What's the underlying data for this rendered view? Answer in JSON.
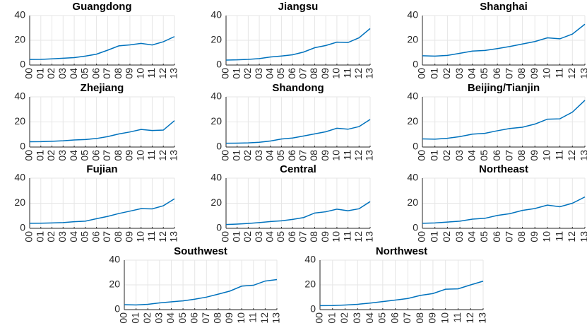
{
  "chart_data": [
    {
      "type": "line",
      "title": "Guangdong",
      "categories": [
        "00",
        "01",
        "02",
        "03",
        "04",
        "05",
        "06",
        "07",
        "08",
        "09",
        "10",
        "11",
        "12",
        "13"
      ],
      "values": [
        4.5,
        4.6,
        5,
        5.5,
        6,
        7.2,
        8.8,
        12,
        15.5,
        16.3,
        17.5,
        16.2,
        18.8,
        23
      ],
      "color": "#0072bd",
      "ylim": [
        0,
        40
      ],
      "yticks": [
        0,
        20,
        40
      ],
      "grid": true
    },
    {
      "type": "line",
      "title": "Jiangsu",
      "categories": [
        "00",
        "01",
        "02",
        "03",
        "04",
        "05",
        "06",
        "07",
        "08",
        "09",
        "10",
        "11",
        "12",
        "13"
      ],
      "values": [
        4,
        4.2,
        4.6,
        5.2,
        6.5,
        7.3,
        8.3,
        10.5,
        14,
        15.8,
        18.5,
        18.2,
        22,
        29.5
      ],
      "color": "#0072bd",
      "ylim": [
        0,
        40
      ],
      "yticks": [
        0,
        20,
        40
      ],
      "grid": true
    },
    {
      "type": "line",
      "title": "Shanghai",
      "categories": [
        "00",
        "01",
        "02",
        "03",
        "04",
        "05",
        "06",
        "07",
        "08",
        "09",
        "10",
        "11",
        "12",
        "13"
      ],
      "values": [
        7.5,
        7.2,
        7.8,
        9.5,
        11.3,
        11.8,
        13.3,
        15,
        17,
        19,
        22,
        21.2,
        25,
        33
      ],
      "color": "#0072bd",
      "ylim": [
        0,
        40
      ],
      "yticks": [
        0,
        20,
        40
      ],
      "grid": true
    },
    {
      "type": "line",
      "title": "Zhejiang",
      "categories": [
        "00",
        "01",
        "02",
        "03",
        "04",
        "05",
        "06",
        "07",
        "08",
        "09",
        "10",
        "11",
        "12",
        "13"
      ],
      "values": [
        4.2,
        4.3,
        4.6,
        5,
        5.6,
        6,
        6.8,
        8.3,
        10.4,
        12,
        14,
        13.2,
        13.5,
        21
      ],
      "color": "#0072bd",
      "ylim": [
        0,
        40
      ],
      "yticks": [
        0,
        20,
        40
      ],
      "grid": true
    },
    {
      "type": "line",
      "title": "Shandong",
      "categories": [
        "00",
        "01",
        "02",
        "03",
        "04",
        "05",
        "06",
        "07",
        "08",
        "09",
        "10",
        "11",
        "12",
        "13"
      ],
      "values": [
        3,
        3.1,
        3.3,
        3.8,
        4.8,
        6.4,
        7.2,
        8.8,
        10.5,
        12.2,
        15,
        14.2,
        16.3,
        22
      ],
      "color": "#0072bd",
      "ylim": [
        0,
        40
      ],
      "yticks": [
        0,
        20,
        40
      ],
      "grid": true
    },
    {
      "type": "line",
      "title": "Beijing/Tianjin",
      "categories": [
        "00",
        "01",
        "02",
        "03",
        "04",
        "05",
        "06",
        "07",
        "08",
        "09",
        "10",
        "11",
        "12",
        "13"
      ],
      "values": [
        6.5,
        6.3,
        7,
        8.3,
        10.3,
        10.9,
        13,
        14.8,
        15.8,
        18.3,
        22.2,
        22.5,
        27.8,
        37.2
      ],
      "color": "#0072bd",
      "ylim": [
        0,
        40
      ],
      "yticks": [
        0,
        20,
        40
      ],
      "grid": true
    },
    {
      "type": "line",
      "title": "Fujian",
      "categories": [
        "00",
        "01",
        "02",
        "03",
        "04",
        "05",
        "06",
        "07",
        "08",
        "09",
        "10",
        "11",
        "12",
        "13"
      ],
      "values": [
        4,
        4.1,
        4.3,
        4.6,
        5.3,
        5.7,
        7.7,
        9.5,
        11.8,
        13.7,
        15.7,
        15.5,
        18,
        23.5
      ],
      "color": "#0072bd",
      "ylim": [
        0,
        40
      ],
      "yticks": [
        0,
        20,
        40
      ],
      "grid": true
    },
    {
      "type": "line",
      "title": "Central",
      "categories": [
        "00",
        "01",
        "02",
        "03",
        "04",
        "05",
        "06",
        "07",
        "08",
        "09",
        "10",
        "11",
        "12",
        "13"
      ],
      "values": [
        3,
        3.4,
        3.9,
        4.6,
        5.4,
        6,
        7.1,
        8.6,
        12.2,
        13.2,
        15.3,
        14,
        15.6,
        21.3
      ],
      "color": "#0072bd",
      "ylim": [
        0,
        40
      ],
      "yticks": [
        0,
        20,
        40
      ],
      "grid": true
    },
    {
      "type": "line",
      "title": "Northeast",
      "categories": [
        "00",
        "01",
        "02",
        "03",
        "04",
        "05",
        "06",
        "07",
        "08",
        "09",
        "10",
        "11",
        "12",
        "13"
      ],
      "values": [
        4,
        4.3,
        5,
        5.7,
        7.3,
        8,
        10.3,
        11.7,
        14.3,
        15.8,
        18.5,
        17.2,
        20,
        25
      ],
      "color": "#0072bd",
      "ylim": [
        0,
        40
      ],
      "yticks": [
        0,
        20,
        40
      ],
      "grid": true
    },
    {
      "type": "line",
      "title": "Southwest",
      "categories": [
        "00",
        "01",
        "02",
        "03",
        "04",
        "05",
        "06",
        "07",
        "08",
        "09",
        "10",
        "11",
        "12",
        "13"
      ],
      "values": [
        4,
        3.8,
        4.3,
        5.4,
        6.3,
        7.1,
        8.4,
        10.1,
        12.5,
        15,
        19,
        19.7,
        23.1,
        24.3
      ],
      "color": "#0072bd",
      "ylim": [
        0,
        40
      ],
      "yticks": [
        0,
        20,
        40
      ],
      "grid": true
    },
    {
      "type": "line",
      "title": "Northwest",
      "categories": [
        "00",
        "01",
        "02",
        "03",
        "04",
        "05",
        "06",
        "07",
        "08",
        "09",
        "10",
        "11",
        "12",
        "13"
      ],
      "values": [
        3.2,
        3.3,
        3.7,
        4.3,
        5.3,
        6.5,
        7.7,
        9,
        11.5,
        13,
        16.5,
        16.8,
        20,
        23
      ],
      "color": "#0072bd",
      "ylim": [
        0,
        40
      ],
      "yticks": [
        0,
        20,
        40
      ],
      "grid": true
    }
  ]
}
